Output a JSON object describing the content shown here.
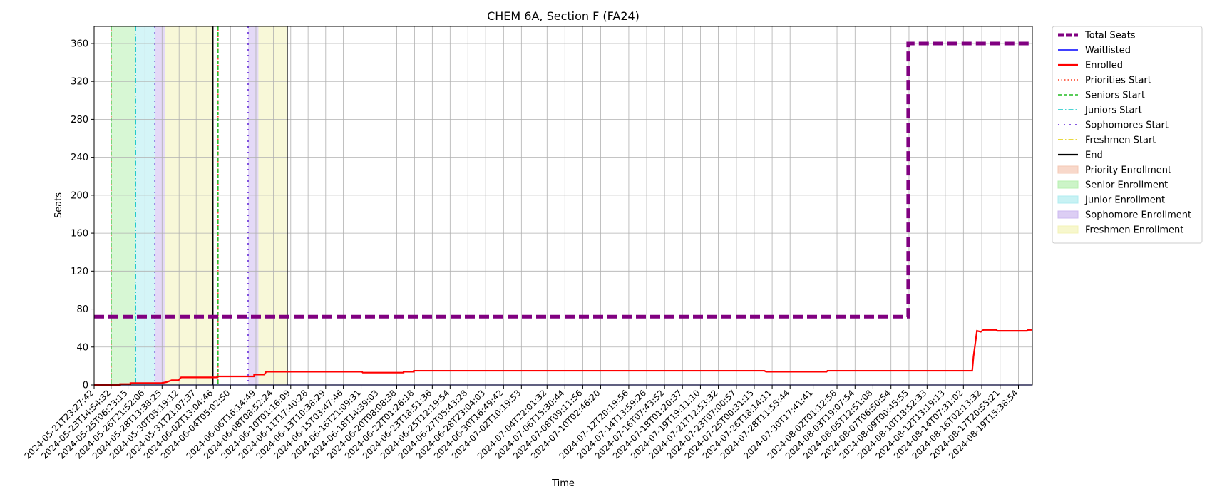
{
  "chart_data": {
    "type": "line",
    "title": "CHEM 6A, Section F (FA24)",
    "xlabel": "Time",
    "ylabel": "Seats",
    "ylim": [
      0,
      378
    ],
    "yticks": [
      0,
      40,
      80,
      120,
      160,
      200,
      240,
      280,
      320,
      360
    ],
    "grid": true,
    "legend_position": "outside-right-top",
    "x_range": [
      "2024-05-21T23:27:42",
      "2024-08-21T00:00:00"
    ],
    "x_ticks": [
      "2024-05-21T23:27:42",
      "2024-05-23T14:54:32",
      "2024-05-25T06:23:15",
      "2024-05-26T21:52:06",
      "2024-05-28T13:38:25",
      "2024-05-30T05:19:12",
      "2024-05-31T21:07:37",
      "2024-06-02T13:04:46",
      "2024-06-04T05:02:50",
      "2024-06-06T16:14:49",
      "2024-06-08T08:52:24",
      "2024-06-10T01:16:09",
      "2024-06-11T17:40:28",
      "2024-06-13T10:38:29",
      "2024-06-15T03:47:46",
      "2024-06-16T21:09:31",
      "2024-06-18T14:39:03",
      "2024-06-20T08:08:38",
      "2024-06-22T01:26:18",
      "2024-06-23T18:51:36",
      "2024-06-25T12:19:54",
      "2024-06-27T05:43:28",
      "2024-06-28T23:04:03",
      "2024-06-30T16:49:42",
      "2024-07-02T10:19:53",
      "2024-07-04T22:01:32",
      "2024-07-06T15:30:44",
      "2024-07-08T09:11:56",
      "2024-07-10T02:46:20",
      "2024-07-12T20:19:56",
      "2024-07-14T13:59:26",
      "2024-07-16T07:43:52",
      "2024-07-18T01:20:37",
      "2024-07-19T19:11:10",
      "2024-07-21T12:53:32",
      "2024-07-23T07:00:57",
      "2024-07-25T00:31:15",
      "2024-07-26T18:14:11",
      "2024-07-28T11:55:44",
      "2024-07-30T17:41:41",
      "2024-08-02T01:12:58",
      "2024-08-03T19:07:54",
      "2024-08-05T12:51:08",
      "2024-08-07T06:50:54",
      "2024-08-09T00:45:55",
      "2024-08-10T18:52:33",
      "2024-08-12T13:19:13",
      "2024-08-14T07:31:02",
      "2024-08-16T02:13:32",
      "2024-08-17T20:55:21",
      "2024-08-19T15:38:54"
    ],
    "series": [
      {
        "name": "Total Seats",
        "color": "#800080",
        "style": "dashed-thick",
        "points": [
          [
            "2024-05-21T23:27:42",
            72
          ],
          [
            "2024-08-08T23:00:00",
            72
          ],
          [
            "2024-08-08T23:00:00",
            360
          ],
          [
            "2024-08-21T00:00:00",
            360
          ]
        ]
      },
      {
        "name": "Waitlisted",
        "color": "#0000ff",
        "style": "solid-thin",
        "points": [
          [
            "2024-05-21T23:27:42",
            0
          ],
          [
            "2024-08-21T00:00:00",
            0
          ]
        ]
      },
      {
        "name": "Enrolled",
        "color": "#ff0000",
        "style": "solid",
        "points": [
          [
            "2024-05-21T23:27:42",
            0
          ],
          [
            "2024-05-24T12:00:00",
            0
          ],
          [
            "2024-05-24T12:00:00",
            1
          ],
          [
            "2024-05-25T12:00:00",
            1
          ],
          [
            "2024-05-25T12:00:00",
            2
          ],
          [
            "2024-05-28T12:00:00",
            2
          ],
          [
            "2024-05-29T00:00:00",
            3
          ],
          [
            "2024-05-29T12:00:00",
            5
          ],
          [
            "2024-05-30T04:00:00",
            5
          ],
          [
            "2024-05-30T10:00:00",
            8
          ],
          [
            "2024-06-02T22:00:00",
            8
          ],
          [
            "2024-06-02T22:00:00",
            9
          ],
          [
            "2024-06-06T12:00:00",
            9
          ],
          [
            "2024-06-06T12:00:00",
            11
          ],
          [
            "2024-06-07T12:00:00",
            11
          ],
          [
            "2024-06-07T16:00:00",
            14
          ],
          [
            "2024-06-16T23:00:00",
            14
          ],
          [
            "2024-06-17T01:00:00",
            13
          ],
          [
            "2024-06-21T00:00:00",
            13
          ],
          [
            "2024-06-21T00:00:00",
            14
          ],
          [
            "2024-06-22T00:00:00",
            14
          ],
          [
            "2024-06-22T00:00:00",
            15
          ],
          [
            "2024-07-26T00:00:00",
            15
          ],
          [
            "2024-07-26T04:00:00",
            14
          ],
          [
            "2024-08-01T01:00:00",
            14
          ],
          [
            "2024-08-01T03:00:00",
            15
          ],
          [
            "2024-08-15T04:00:00",
            15
          ],
          [
            "2024-08-15T07:00:00",
            30
          ],
          [
            "2024-08-15T10:00:00",
            40
          ],
          [
            "2024-08-15T15:00:00",
            57
          ],
          [
            "2024-08-16T00:00:00",
            56
          ],
          [
            "2024-08-16T06:00:00",
            58
          ],
          [
            "2024-08-17T12:00:00",
            58
          ],
          [
            "2024-08-17T15:00:00",
            57
          ],
          [
            "2024-08-20T12:00:00",
            57
          ],
          [
            "2024-08-20T14:00:00",
            58
          ],
          [
            "2024-08-21T00:00:00",
            58
          ]
        ]
      }
    ],
    "start_lines": [
      {
        "name": "Priorities Start",
        "color": "#ff3b1f",
        "style": "dotted",
        "times": [
          "2024-05-23T14:54:32",
          "2024-06-03T00:00:00"
        ]
      },
      {
        "name": "Seniors Start",
        "color": "#22bb22",
        "style": "dashed",
        "times": [
          "2024-05-23T14:54:32",
          "2024-06-03T00:00:00"
        ]
      },
      {
        "name": "Juniors Start",
        "color": "#11c6c6",
        "style": "dashdot",
        "times": [
          "2024-05-26T00:00:00"
        ]
      },
      {
        "name": "Sophomores Start",
        "color": "#5b1fd6",
        "style": "loosedash",
        "times": [
          "2024-05-27T21:00:00",
          "2024-06-05T22:00:00"
        ]
      },
      {
        "name": "Freshmen Start",
        "color": "#e2cc00",
        "style": "dashdot",
        "times": []
      },
      {
        "name": "End",
        "color": "#000000",
        "style": "solid",
        "times": [
          "2024-06-02T12:00:00",
          "2024-06-09T17:00:00"
        ]
      }
    ],
    "spans": [
      {
        "name": "Priority Enrollment",
        "color": "#f5c8b4",
        "ranges": []
      },
      {
        "name": "Senior Enrollment",
        "color": "#b7f0b0",
        "ranges": [
          [
            "2024-05-23T14:54:32",
            "2024-05-26T00:00:00"
          ]
        ]
      },
      {
        "name": "Junior Enrollment",
        "color": "#b0ecf0",
        "ranges": [
          [
            "2024-05-26T00:00:00",
            "2024-05-27T21:00:00"
          ]
        ]
      },
      {
        "name": "Sophomore Enrollment",
        "color": "#cdb9f0",
        "ranges": [
          [
            "2024-05-27T21:00:00",
            "2024-05-28T21:00:00"
          ],
          [
            "2024-06-05T22:00:00",
            "2024-06-06T22:00:00"
          ]
        ]
      },
      {
        "name": "Freshmen Enrollment",
        "color": "#f3f3b8",
        "ranges": [
          [
            "2024-05-28T21:00:00",
            "2024-06-02T12:00:00"
          ],
          [
            "2024-06-06T22:00:00",
            "2024-06-09T17:00:00"
          ]
        ]
      }
    ]
  }
}
